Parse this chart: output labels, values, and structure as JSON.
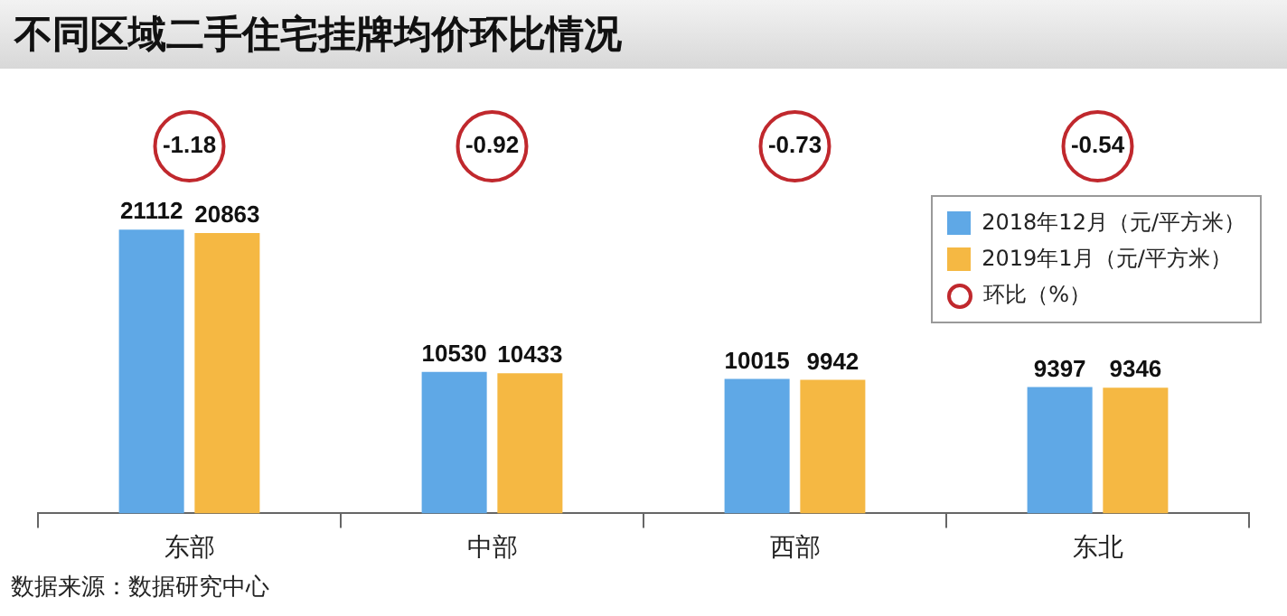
{
  "chart_data": {
    "type": "bar",
    "title": "不同区域二手住宅挂牌均价环比情况",
    "categories": [
      "东部",
      "中部",
      "西部",
      "东北"
    ],
    "series": [
      {
        "name": "2018年12月（元/平方米）",
        "color": "#5fa8e6",
        "values": [
          21112,
          10530,
          10015,
          9397
        ]
      },
      {
        "name": "2019年1月（元/平方米）",
        "color": "#f5b843",
        "values": [
          20863,
          10433,
          9942,
          9346
        ]
      },
      {
        "name": "环比（%）",
        "type": "scatter",
        "color": "#c0282d",
        "values": [
          null,
          null,
          null,
          null
        ]
      }
    ],
    "tick_labels": "x",
    "grid": false,
    "legend": "right",
    "marker": "circle",
    "data_labels": true,
    "annotations": [
      "-1.18",
      "-0.92",
      "-0.73",
      "-0.54",
      "数据来源：数据研究中心"
    ]
  }
}
